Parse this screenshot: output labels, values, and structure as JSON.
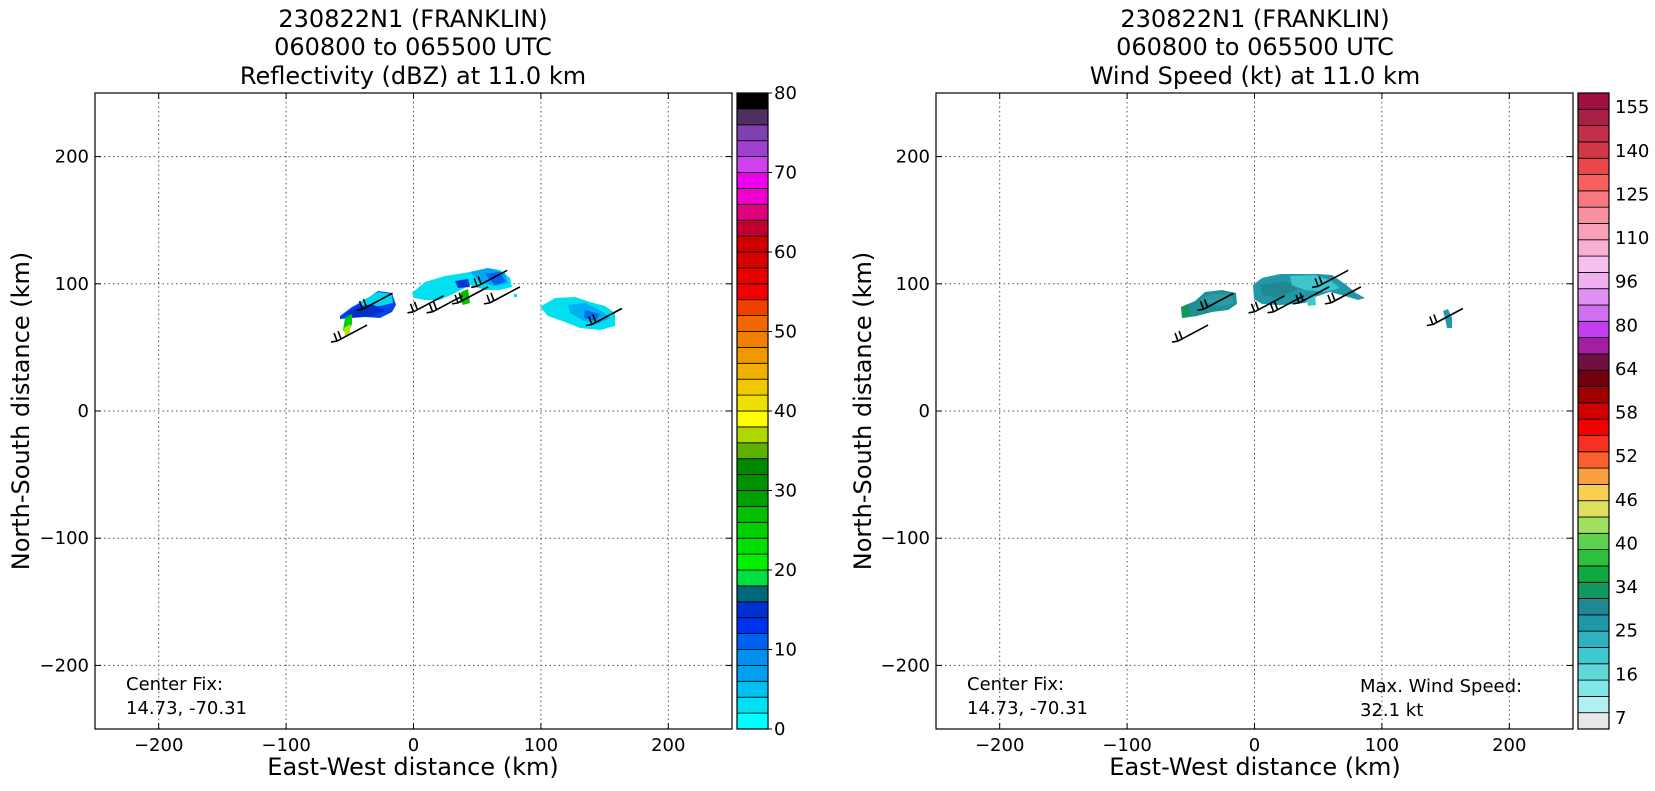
{
  "panels": [
    {
      "title_lines": [
        "230822N1 (FRANKLIN)",
        "060800 to 065500 UTC",
        "Reflectivity (dBZ) at 11.0 km"
      ],
      "xlabel": "East-West distance (km)",
      "ylabel": "North-South distance (km)",
      "annotations": {
        "center_fix_label": "Center Fix:",
        "center_fix_value": "14.73, -70.31"
      },
      "colorbar": {
        "min": 0,
        "max": 80,
        "step": 2.5,
        "tick_labels": [
          "0",
          "10",
          "20",
          "30",
          "40",
          "50",
          "60",
          "70",
          "80"
        ],
        "colors": [
          "#00ffff",
          "#00e0f0",
          "#00c0f0",
          "#00a0f0",
          "#0090f0",
          "#0060f0",
          "#0030f0",
          "#0030d0",
          "#006878",
          "#00e040",
          "#00f000",
          "#00e000",
          "#00d000",
          "#00c000",
          "#00a000",
          "#009000",
          "#008800",
          "#60b000",
          "#b0d800",
          "#ffff00",
          "#f0e000",
          "#f0c800",
          "#f0b000",
          "#f09800",
          "#f08000",
          "#f06800",
          "#f04000",
          "#f00000",
          "#e80000",
          "#d80000",
          "#d00000",
          "#c00030",
          "#e00080",
          "#f000d0",
          "#f000f0",
          "#d040f0",
          "#a040d0",
          "#8040b0",
          "#503060",
          "#000000"
        ]
      }
    },
    {
      "title_lines": [
        "230822N1 (FRANKLIN)",
        "060800 to 065500 UTC",
        "Wind Speed (kt) at 11.0 km"
      ],
      "xlabel": "East-West distance (km)",
      "ylabel": "North-South distance (km)",
      "annotations": {
        "center_fix_label": "Center Fix:",
        "center_fix_value": "14.73, -70.31",
        "max_wind_label": "Max. Wind Speed:",
        "max_wind_value": "32.1 kt"
      },
      "colorbar": {
        "tick_labels": [
          "7",
          "16",
          "25",
          "34",
          "40",
          "46",
          "52",
          "58",
          "64",
          "80",
          "96",
          "110",
          "125",
          "140",
          "155"
        ],
        "colors": [
          "#e8e8e8",
          "#b0f0f0",
          "#80e8e8",
          "#60d8d8",
          "#40c8d0",
          "#30b0c0",
          "#2098a8",
          "#208890",
          "#109860",
          "#10a840",
          "#30c040",
          "#60d050",
          "#a0e060",
          "#e0e060",
          "#f8d050",
          "#f8a040",
          "#f86030",
          "#f83020",
          "#f00000",
          "#d00000",
          "#a00000",
          "#700010",
          "#701040",
          "#a020a0",
          "#c040f0",
          "#d070f0",
          "#e090f0",
          "#f0b0f0",
          "#f8c0f0",
          "#f8b0d0",
          "#f8a0b8",
          "#f890a0",
          "#f87880",
          "#f86060",
          "#e84848",
          "#d03848",
          "#c03048",
          "#a82048",
          "#a01040"
        ]
      }
    }
  ],
  "chart_data": [
    {
      "type": "heatmap",
      "title": "230822N1 (FRANKLIN) 060800 to 065500 UTC Reflectivity (dBZ) at 11.0 km",
      "xlabel": "East-West distance (km)",
      "ylabel": "North-South distance (km)",
      "xlim": [
        -250,
        250
      ],
      "ylim": [
        -250,
        250
      ],
      "xticks": [
        -200,
        -100,
        0,
        100,
        200
      ],
      "yticks": [
        -200,
        -100,
        0,
        100,
        200
      ],
      "grid": true,
      "colorbar_label_range": [
        0,
        80
      ],
      "echo_regions": [
        {
          "x": [
            -55,
            -15
          ],
          "y": [
            72,
            94
          ],
          "dbz_range": [
            5,
            12
          ]
        },
        {
          "x": [
            -50,
            -44
          ],
          "y": [
            62,
            72
          ],
          "dbz_range": [
            20,
            35
          ]
        },
        {
          "x": [
            0,
            80
          ],
          "y": [
            85,
            112
          ],
          "dbz_range": [
            1,
            10
          ]
        },
        {
          "x": [
            38,
            46
          ],
          "y": [
            82,
            90
          ],
          "dbz_range": [
            20,
            25
          ]
        },
        {
          "x": [
            100,
            160
          ],
          "y": [
            65,
            85
          ],
          "dbz_range": [
            1,
            8
          ]
        }
      ],
      "wind_barbs": [
        [
          -60,
          55
        ],
        [
          -40,
          80
        ],
        [
          0,
          78
        ],
        [
          15,
          78
        ],
        [
          35,
          85
        ],
        [
          50,
          98
        ],
        [
          60,
          85
        ],
        [
          140,
          68
        ]
      ]
    },
    {
      "type": "heatmap",
      "title": "230822N1 (FRANKLIN) 060800 to 065500 UTC Wind Speed (kt) at 11.0 km",
      "xlabel": "East-West distance (km)",
      "ylabel": "North-South distance (km)",
      "xlim": [
        -250,
        250
      ],
      "ylim": [
        -250,
        250
      ],
      "xticks": [
        -200,
        -100,
        0,
        100,
        200
      ],
      "yticks": [
        -200,
        -100,
        0,
        100,
        200
      ],
      "grid": true,
      "max_wind_kt": 32.1,
      "wind_regions": [
        {
          "x": [
            -57,
            -17
          ],
          "y": [
            74,
            94
          ],
          "kt_range": [
            22,
            30
          ]
        },
        {
          "x": [
            0,
            85
          ],
          "y": [
            83,
            108
          ],
          "kt_range": [
            18,
            30
          ]
        },
        {
          "x": [
            150,
            156
          ],
          "y": [
            67,
            78
          ],
          "kt_range": [
            18,
            25
          ]
        }
      ],
      "wind_barbs": [
        [
          -60,
          55
        ],
        [
          -40,
          80
        ],
        [
          0,
          78
        ],
        [
          15,
          78
        ],
        [
          35,
          85
        ],
        [
          50,
          98
        ],
        [
          60,
          85
        ],
        [
          140,
          68
        ]
      ]
    }
  ]
}
